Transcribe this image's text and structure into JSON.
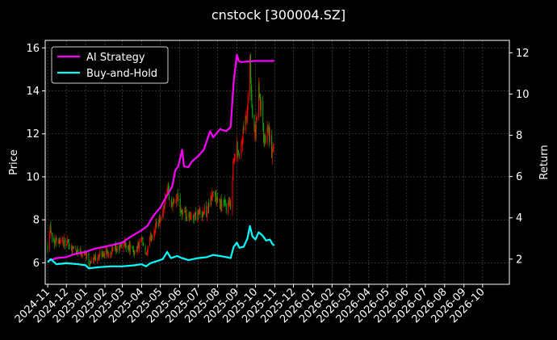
{
  "chart_data": {
    "type": "line",
    "title": "cnstock [300004.SZ]",
    "ylabel_left": "Price",
    "ylabel_right": "Return",
    "xlabel": "",
    "grid": true,
    "legend_position": "top-left",
    "background": "#000000",
    "colors": {
      "strategy": "#ff00ff",
      "buyhold": "#00ffff",
      "candle_up": "#ff0000",
      "candle_down": "#00aa00",
      "grid": "#555555",
      "axis": "#ffffff"
    },
    "ylim_left": [
      5.0,
      16.35
    ],
    "ylim_right": [
      0.78,
      12.6
    ],
    "xlim": [
      "2024-10-28",
      "2026-11-13"
    ],
    "yticks_left": [
      6,
      8,
      10,
      12,
      14,
      16
    ],
    "yticks_right": [
      2,
      4,
      6,
      8,
      10,
      12
    ],
    "xticks": [
      "2024-11",
      "2024-12",
      "2025-01",
      "2025-02",
      "2025-03",
      "2025-04",
      "2025-05",
      "2025-06",
      "2025-07",
      "2025-08",
      "2025-09",
      "2025-10",
      "2025-11",
      "2025-12",
      "2026-01",
      "2026-02",
      "2026-03",
      "2026-04",
      "2026-05",
      "2026-06",
      "2026-07",
      "2026-08",
      "2026-09",
      "2026-10"
    ],
    "price_anchors": [
      [
        "2024-11-01",
        6.8
      ],
      [
        "2024-11-05",
        7.7
      ],
      [
        "2024-11-10",
        7.0
      ],
      [
        "2024-11-20",
        7.1
      ],
      [
        "2024-12-01",
        6.9
      ],
      [
        "2024-12-15",
        6.6
      ],
      [
        "2024-12-31",
        6.5
      ],
      [
        "2025-01-06",
        6.0
      ],
      [
        "2025-01-20",
        6.3
      ],
      [
        "2025-02-05",
        6.5
      ],
      [
        "2025-02-20",
        6.6
      ],
      [
        "2025-03-05",
        6.9
      ],
      [
        "2025-03-20",
        6.5
      ],
      [
        "2025-04-01",
        7.0
      ],
      [
        "2025-04-08",
        6.3
      ],
      [
        "2025-04-15",
        7.1
      ],
      [
        "2025-04-25",
        7.8
      ],
      [
        "2025-05-05",
        8.3
      ],
      [
        "2025-05-12",
        9.6
      ],
      [
        "2025-05-18",
        8.6
      ],
      [
        "2025-05-28",
        9.0
      ],
      [
        "2025-06-05",
        8.3
      ],
      [
        "2025-06-15",
        8.0
      ],
      [
        "2025-07-01",
        8.3
      ],
      [
        "2025-07-15",
        8.4
      ],
      [
        "2025-07-25",
        9.3
      ],
      [
        "2025-08-01",
        8.8
      ],
      [
        "2025-08-15",
        8.6
      ],
      [
        "2025-08-22",
        8.7
      ],
      [
        "2025-08-26",
        10.6
      ],
      [
        "2025-09-01",
        11.4
      ],
      [
        "2025-09-05",
        11.0
      ],
      [
        "2025-09-12",
        12.1
      ],
      [
        "2025-09-18",
        13.0
      ],
      [
        "2025-09-22",
        15.3
      ],
      [
        "2025-09-25",
        13.0
      ],
      [
        "2025-10-01",
        11.9
      ],
      [
        "2025-10-05",
        14.2
      ],
      [
        "2025-10-10",
        13.2
      ],
      [
        "2025-10-15",
        11.5
      ],
      [
        "2025-10-20",
        12.6
      ],
      [
        "2025-10-24",
        11.8
      ],
      [
        "2025-10-27",
        11.0
      ],
      [
        "2025-10-30",
        11.4
      ]
    ],
    "series": [
      {
        "name": "AI Strategy",
        "points": [
          [
            "2024-11-01",
            1.9
          ],
          [
            "2024-11-15",
            2.05
          ],
          [
            "2024-12-01",
            2.1
          ],
          [
            "2024-12-15",
            2.25
          ],
          [
            "2025-01-01",
            2.35
          ],
          [
            "2025-01-15",
            2.5
          ],
          [
            "2025-02-01",
            2.6
          ],
          [
            "2025-02-15",
            2.7
          ],
          [
            "2025-03-01",
            2.8
          ],
          [
            "2025-03-15",
            3.1
          ],
          [
            "2025-04-01",
            3.4
          ],
          [
            "2025-04-10",
            3.6
          ],
          [
            "2025-04-20",
            4.1
          ],
          [
            "2025-05-01",
            4.5
          ],
          [
            "2025-05-10",
            5.0
          ],
          [
            "2025-05-20",
            5.5
          ],
          [
            "2025-05-25",
            6.3
          ],
          [
            "2025-05-30",
            6.5
          ],
          [
            "2025-06-05",
            7.3
          ],
          [
            "2025-06-08",
            6.5
          ],
          [
            "2025-06-15",
            6.45
          ],
          [
            "2025-06-20",
            6.7
          ],
          [
            "2025-07-01",
            7.0
          ],
          [
            "2025-07-10",
            7.3
          ],
          [
            "2025-07-20",
            8.2
          ],
          [
            "2025-07-25",
            7.9
          ],
          [
            "2025-08-05",
            8.3
          ],
          [
            "2025-08-15",
            8.2
          ],
          [
            "2025-08-22",
            8.4
          ],
          [
            "2025-08-27",
            10.6
          ],
          [
            "2025-09-01",
            11.9
          ],
          [
            "2025-09-04",
            11.6
          ],
          [
            "2025-09-08",
            11.55
          ],
          [
            "2025-09-30",
            11.6
          ],
          [
            "2025-10-31",
            11.6
          ]
        ]
      },
      {
        "name": "Buy-and-Hold",
        "points": [
          [
            "2024-11-01",
            1.85
          ],
          [
            "2024-11-06",
            2.0
          ],
          [
            "2024-11-15",
            1.75
          ],
          [
            "2024-12-01",
            1.8
          ],
          [
            "2024-12-20",
            1.75
          ],
          [
            "2025-01-01",
            1.7
          ],
          [
            "2025-01-06",
            1.55
          ],
          [
            "2025-01-20",
            1.6
          ],
          [
            "2025-02-10",
            1.65
          ],
          [
            "2025-03-01",
            1.65
          ],
          [
            "2025-03-20",
            1.7
          ],
          [
            "2025-04-01",
            1.75
          ],
          [
            "2025-04-08",
            1.65
          ],
          [
            "2025-04-15",
            1.8
          ],
          [
            "2025-04-25",
            1.9
          ],
          [
            "2025-05-05",
            2.0
          ],
          [
            "2025-05-12",
            2.35
          ],
          [
            "2025-05-18",
            2.05
          ],
          [
            "2025-05-28",
            2.15
          ],
          [
            "2025-06-05",
            2.05
          ],
          [
            "2025-06-15",
            1.95
          ],
          [
            "2025-07-01",
            2.05
          ],
          [
            "2025-07-15",
            2.1
          ],
          [
            "2025-07-25",
            2.2
          ],
          [
            "2025-08-05",
            2.15
          ],
          [
            "2025-08-15",
            2.1
          ],
          [
            "2025-08-22",
            2.05
          ],
          [
            "2025-08-27",
            2.6
          ],
          [
            "2025-09-01",
            2.8
          ],
          [
            "2025-09-05",
            2.55
          ],
          [
            "2025-09-12",
            2.6
          ],
          [
            "2025-09-18",
            3.0
          ],
          [
            "2025-09-22",
            3.6
          ],
          [
            "2025-09-26",
            3.1
          ],
          [
            "2025-10-01",
            2.95
          ],
          [
            "2025-10-06",
            3.3
          ],
          [
            "2025-10-12",
            3.15
          ],
          [
            "2025-10-18",
            2.9
          ],
          [
            "2025-10-24",
            2.95
          ],
          [
            "2025-10-28",
            2.75
          ],
          [
            "2025-10-31",
            2.65
          ]
        ]
      }
    ]
  }
}
